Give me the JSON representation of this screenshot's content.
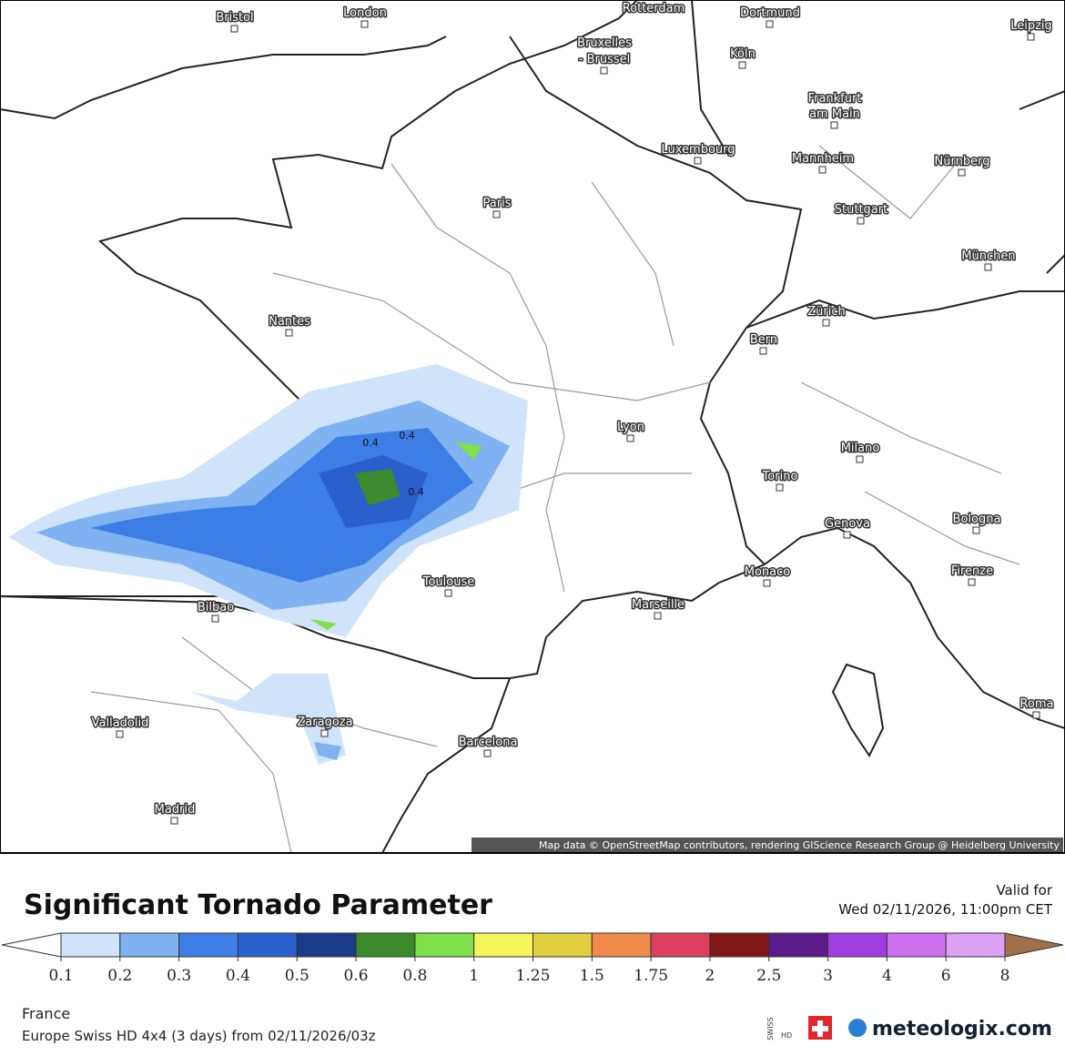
{
  "map": {
    "cities": [
      "Bristol",
      "London",
      "Rotterdam",
      "Dortmund",
      "Leipzig",
      "Bruxelles",
      "- Brussel",
      "Köln",
      "Frankfurt",
      "am Main",
      "Luxembourg",
      "Mannheim",
      "Nürnberg",
      "Paris",
      "Stuttgart",
      "München",
      "Nantes",
      "Zürich",
      "Bern",
      "Lyon",
      "Milano",
      "Torino",
      "Genova",
      "Bologna",
      "Monaco",
      "Firenze",
      "Toulouse",
      "Marseille",
      "Bilbao",
      "Valladolid",
      "Zaragoza",
      "Barcelona",
      "Roma",
      "Madrid"
    ],
    "contour_labels": [
      "0.4",
      "0.4",
      "0.4"
    ],
    "attribution": "Map data © OpenStreetMap contributors, rendering GIScience Research Group @ Heidelberg University"
  },
  "legend": {
    "title": "Significant Tornado Parameter",
    "valid_label": "Valid for",
    "valid_time": "Wed 02/11/2026, 11:00pm CET",
    "ticks": [
      0.1,
      0.2,
      0.3,
      0.4,
      0.5,
      0.6,
      0.8,
      1,
      1.25,
      1.5,
      1.75,
      2,
      2.5,
      3,
      4,
      6,
      8
    ],
    "colors": [
      "#cfe3fb",
      "#7fb2f0",
      "#3d7ee6",
      "#2a5fcc",
      "#1a3a8a",
      "#3c8a2e",
      "#7fe04a",
      "#f5f55a",
      "#e0d040",
      "#f08a4a",
      "#e04060",
      "#801818",
      "#5a1a8a",
      "#a040e0",
      "#cc70f0",
      "#dca0f5"
    ],
    "under_color": "#ffffff",
    "over_color": "#a0704a"
  },
  "footer": {
    "region": "France",
    "model": "Europe Swiss HD 4x4 (3 days) from 02/11/2026/03z",
    "logo": "meteologix.com",
    "badge": [
      "SWISS",
      "HD"
    ]
  }
}
